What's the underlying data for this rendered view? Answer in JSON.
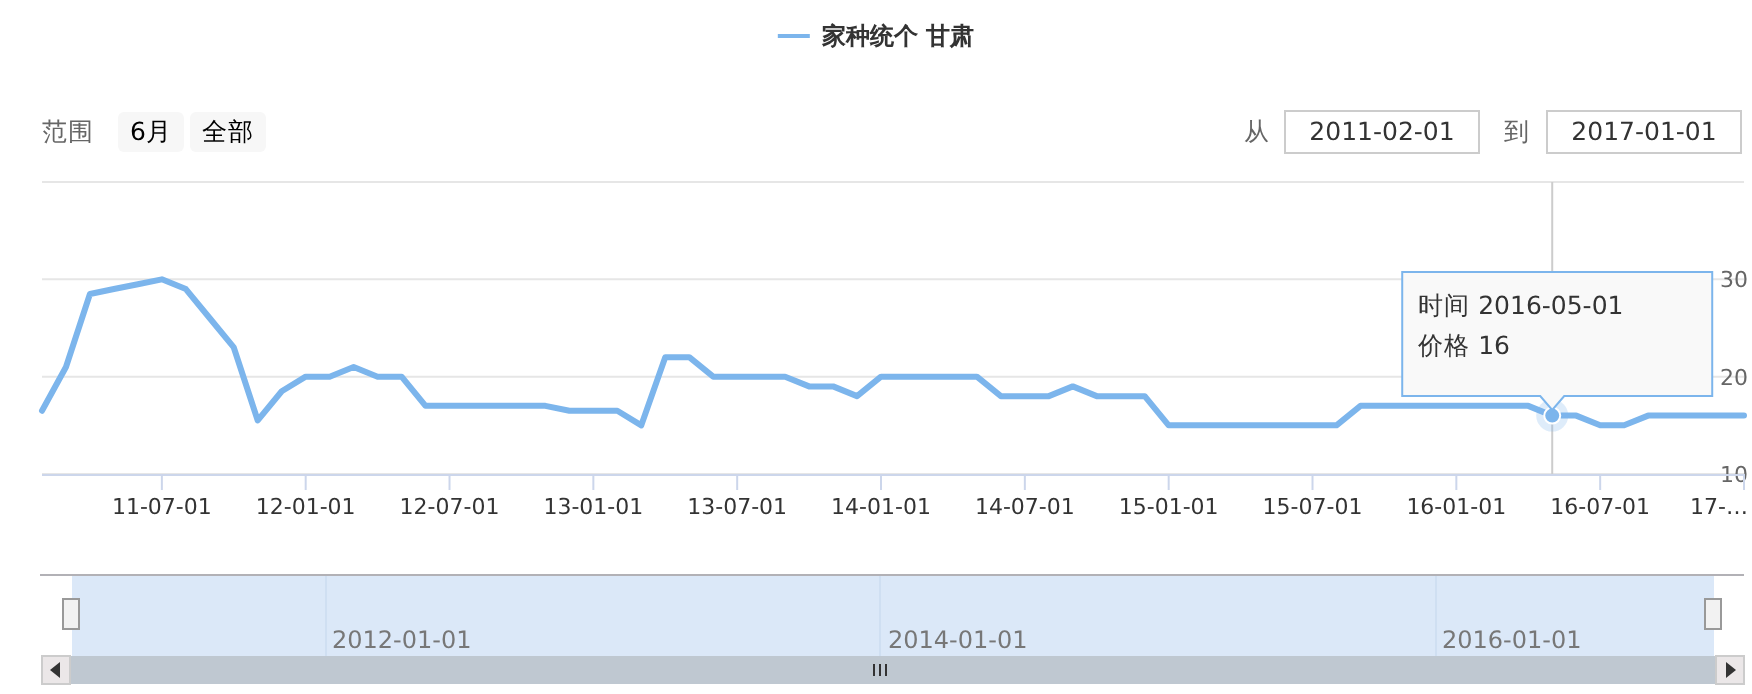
{
  "chart_data": {
    "type": "line",
    "x": [
      "2011-02",
      "2011-03",
      "2011-04",
      "2011-05",
      "2011-06",
      "2011-07",
      "2011-08",
      "2011-09",
      "2011-10",
      "2011-11",
      "2011-12",
      "2012-01",
      "2012-02",
      "2012-03",
      "2012-04",
      "2012-05",
      "2012-06",
      "2012-07",
      "2012-08",
      "2012-09",
      "2012-10",
      "2012-11",
      "2012-12",
      "2013-01",
      "2013-02",
      "2013-03",
      "2013-04",
      "2013-05",
      "2013-06",
      "2013-07",
      "2013-08",
      "2013-09",
      "2013-10",
      "2013-11",
      "2013-12",
      "2014-01",
      "2014-02",
      "2014-03",
      "2014-04",
      "2014-05",
      "2014-06",
      "2014-07",
      "2014-08",
      "2014-09",
      "2014-10",
      "2014-11",
      "2014-12",
      "2015-01",
      "2015-02",
      "2015-03",
      "2015-04",
      "2015-05",
      "2015-06",
      "2015-07",
      "2015-08",
      "2015-09",
      "2015-10",
      "2015-11",
      "2015-12",
      "2016-01",
      "2016-02",
      "2016-03",
      "2016-04",
      "2016-05",
      "2016-06",
      "2016-07",
      "2016-08",
      "2016-09",
      "2016-10",
      "2016-11",
      "2016-12",
      "2017-01"
    ],
    "series": [
      {
        "name": "家种统个 甘肃",
        "color": "#7cb5ec",
        "values": [
          16.5,
          21,
          28.5,
          29,
          29.5,
          30,
          29,
          26,
          23,
          15.5,
          18.5,
          20,
          20,
          21,
          20,
          20,
          17,
          17,
          17,
          17,
          17,
          17,
          16.5,
          16.5,
          16.5,
          15,
          22,
          22,
          20,
          20,
          20,
          20,
          19,
          19,
          18,
          20,
          20,
          20,
          20,
          20,
          18,
          18,
          18,
          19,
          18,
          18,
          18,
          15,
          15,
          15,
          15,
          15,
          15,
          15,
          15,
          17,
          17,
          17,
          17,
          17,
          17,
          17,
          17,
          16,
          16,
          15,
          15,
          16,
          16,
          16,
          16,
          16
        ]
      }
    ],
    "xlim": [
      "2011-02",
      "2017-01"
    ],
    "xticks": [
      {
        "value": "2011-07-01",
        "label": "11-07-01"
      },
      {
        "value": "2012-01-01",
        "label": "12-01-01"
      },
      {
        "value": "2012-07-01",
        "label": "12-07-01"
      },
      {
        "value": "2013-01-01",
        "label": "13-01-01"
      },
      {
        "value": "2013-07-01",
        "label": "13-07-01"
      },
      {
        "value": "2014-01-01",
        "label": "14-01-01"
      },
      {
        "value": "2014-07-01",
        "label": "14-07-01"
      },
      {
        "value": "2015-01-01",
        "label": "15-01-01"
      },
      {
        "value": "2015-07-01",
        "label": "15-07-01"
      },
      {
        "value": "2016-01-01",
        "label": "16-01-01"
      },
      {
        "value": "2016-07-01",
        "label": "16-07-01"
      },
      {
        "value": "2017-01-01",
        "label": "17-…"
      }
    ],
    "ylim": [
      10,
      40
    ],
    "yticks": [
      10,
      20,
      30,
      {
        "value": 40,
        "label": null
      }
    ],
    "grid": "y",
    "legend": "top",
    "line_style": "solid",
    "marker": "none",
    "ref_lines": [
      {
        "axis": "x",
        "value": "2016-05",
        "color": "#cccccc"
      }
    ],
    "annotations": [
      "范围",
      "6月",
      "全部",
      "从",
      "2011-02-01",
      "到",
      "2017-01-01",
      "2012-01-01",
      "2014-01-01",
      "2016-01-01",
      "时间 2016-05-01",
      "价格 16"
    ]
  }
}
